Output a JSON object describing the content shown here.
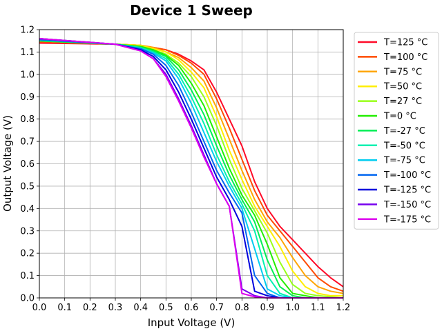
{
  "chart_data": {
    "type": "line",
    "title": "Device 1 Sweep",
    "xlabel": "Input Voltage (V)",
    "ylabel": "Output Voltage (V)",
    "xlim": [
      0,
      1.2
    ],
    "ylim": [
      0,
      1.2
    ],
    "xticks": [
      "0.0",
      "0.1",
      "0.2",
      "0.3",
      "0.4",
      "0.5",
      "0.6",
      "0.7",
      "0.8",
      "0.9",
      "1.0",
      "1.1",
      "1.2"
    ],
    "yticks": [
      "0.0",
      "0.1",
      "0.2",
      "0.3",
      "0.4",
      "0.5",
      "0.6",
      "0.7",
      "0.8",
      "0.9",
      "1.0",
      "1.1",
      "1.2"
    ],
    "grid": true,
    "legend_position": "outside-right",
    "x": [
      0.0,
      0.3,
      0.4,
      0.45,
      0.5,
      0.55,
      0.6,
      0.65,
      0.7,
      0.75,
      0.8,
      0.85,
      0.9,
      0.95,
      1.0,
      1.05,
      1.1,
      1.15,
      1.2
    ],
    "series": [
      {
        "name": "T=125 °C",
        "color": "#ff0a28",
        "values": [
          1.14,
          1.135,
          1.13,
          1.12,
          1.11,
          1.09,
          1.06,
          1.02,
          0.92,
          0.8,
          0.68,
          0.52,
          0.4,
          0.32,
          0.26,
          0.2,
          0.14,
          0.09,
          0.05
        ]
      },
      {
        "name": "T=100 °C",
        "color": "#ff4a00",
        "values": [
          1.145,
          1.135,
          1.13,
          1.12,
          1.11,
          1.085,
          1.05,
          1.0,
          0.89,
          0.76,
          0.62,
          0.48,
          0.37,
          0.3,
          0.23,
          0.16,
          0.09,
          0.05,
          0.03
        ]
      },
      {
        "name": "T=75 °C",
        "color": "#ffa500",
        "values": [
          1.15,
          1.135,
          1.13,
          1.12,
          1.1,
          1.075,
          1.03,
          0.97,
          0.85,
          0.71,
          0.57,
          0.44,
          0.34,
          0.27,
          0.18,
          0.1,
          0.05,
          0.03,
          0.02
        ]
      },
      {
        "name": "T=50 °C",
        "color": "#ffee00",
        "values": [
          1.15,
          1.135,
          1.13,
          1.115,
          1.1,
          1.065,
          1.01,
          0.94,
          0.81,
          0.66,
          0.53,
          0.41,
          0.32,
          0.23,
          0.12,
          0.05,
          0.02,
          0.01,
          0.01
        ]
      },
      {
        "name": "T=27 °C",
        "color": "#99ff1a",
        "values": [
          1.15,
          1.135,
          1.125,
          1.11,
          1.09,
          1.05,
          0.99,
          0.9,
          0.77,
          0.62,
          0.49,
          0.39,
          0.29,
          0.16,
          0.06,
          0.02,
          0.01,
          0.005,
          0.0
        ]
      },
      {
        "name": "T=0 °C",
        "color": "#22ee00",
        "values": [
          1.15,
          1.135,
          1.125,
          1.11,
          1.085,
          1.04,
          0.96,
          0.86,
          0.72,
          0.58,
          0.46,
          0.37,
          0.24,
          0.09,
          0.02,
          0.01,
          0.0,
          0.0,
          0.0
        ]
      },
      {
        "name": "T=-27 °C",
        "color": "#00ee55",
        "values": [
          1.15,
          1.135,
          1.12,
          1.105,
          1.08,
          1.02,
          0.93,
          0.82,
          0.68,
          0.55,
          0.44,
          0.34,
          0.17,
          0.05,
          0.01,
          0.0,
          0.0,
          0.0,
          0.0
        ]
      },
      {
        "name": "T=-50 °C",
        "color": "#00f0b0",
        "values": [
          1.155,
          1.135,
          1.12,
          1.1,
          1.07,
          1.0,
          0.9,
          0.78,
          0.64,
          0.52,
          0.42,
          0.3,
          0.1,
          0.02,
          0.0,
          0.0,
          0.0,
          0.0,
          0.0
        ]
      },
      {
        "name": "T=-75 °C",
        "color": "#00ccf0",
        "values": [
          1.155,
          1.135,
          1.115,
          1.095,
          1.06,
          0.98,
          0.87,
          0.74,
          0.61,
          0.5,
          0.4,
          0.22,
          0.04,
          0.01,
          0.0,
          0.0,
          0.0,
          0.0,
          0.0
        ]
      },
      {
        "name": "T=-100 °C",
        "color": "#0066f0",
        "values": [
          1.155,
          1.135,
          1.115,
          1.09,
          1.04,
          0.95,
          0.83,
          0.7,
          0.57,
          0.47,
          0.38,
          0.1,
          0.02,
          0.0,
          0.0,
          0.0,
          0.0,
          0.0,
          0.0
        ]
      },
      {
        "name": "T=-125 °C",
        "color": "#0000dd",
        "values": [
          1.16,
          1.135,
          1.11,
          1.08,
          1.02,
          0.92,
          0.8,
          0.67,
          0.54,
          0.44,
          0.32,
          0.03,
          0.01,
          0.0,
          0.0,
          0.0,
          0.0,
          0.0,
          0.0
        ]
      },
      {
        "name": "T=-150 °C",
        "color": "#7700ee",
        "values": [
          1.16,
          1.135,
          1.105,
          1.07,
          1.0,
          0.89,
          0.77,
          0.64,
          0.51,
          0.41,
          0.04,
          0.01,
          0.0,
          0.0,
          0.0,
          0.0,
          0.0,
          0.0,
          0.0
        ]
      },
      {
        "name": "T=-175 °C",
        "color": "#dd00ee",
        "values": [
          1.16,
          1.135,
          1.105,
          1.07,
          0.99,
          0.88,
          0.76,
          0.63,
          0.51,
          0.41,
          0.02,
          0.005,
          0.0,
          0.0,
          0.0,
          0.0,
          0.0,
          0.0,
          0.0
        ]
      }
    ]
  }
}
